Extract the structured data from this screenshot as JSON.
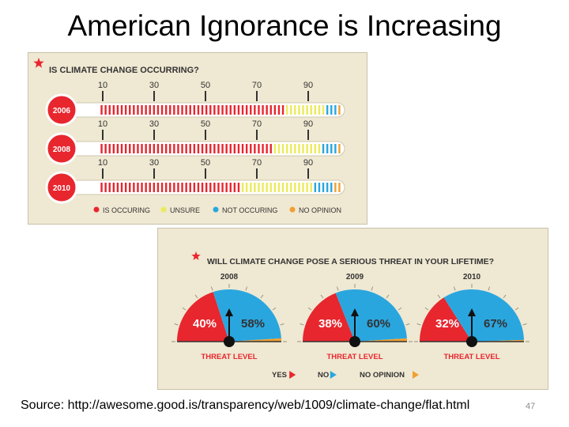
{
  "slide": {
    "title": "American Ignorance is Increasing",
    "source": "Source: http://awesome.good.is/transparency/web/1009/climate-change/flat.html",
    "page_number": "47"
  },
  "colors": {
    "red": "#e8262e",
    "yellow": "#ecea5c",
    "blue": "#2aa6df",
    "orange": "#f0a030",
    "gray": "#bdbdbd",
    "dark": "#333333",
    "panel_bg": "#efe8d2"
  },
  "chart_data": [
    {
      "type": "bar",
      "title": "IS CLIMATE CHANGE OCCURRING?",
      "scale_ticks": [
        "10",
        "30",
        "50",
        "70",
        "90"
      ],
      "categories": [
        "2006",
        "2008",
        "2010"
      ],
      "series": [
        {
          "name": "IS OCCURING",
          "values": [
            77,
            71,
            59
          ]
        },
        {
          "name": "UNSURE",
          "values": [
            16,
            21,
            30
          ]
        },
        {
          "name": "NOT OCCURING",
          "values": [
            6,
            6,
            8
          ]
        },
        {
          "name": "NO OPINION",
          "values": [
            1,
            2,
            3
          ]
        }
      ],
      "xlim": [
        0,
        100
      ],
      "legend": "bottom"
    },
    {
      "type": "pie",
      "title": "WILL CLIMATE CHANGE POSE A SERIOUS THREAT IN YOUR LIFETIME?",
      "categories": [
        "2008",
        "2009",
        "2010"
      ],
      "series": [
        {
          "name": "YES",
          "values": [
            40,
            38,
            32
          ],
          "labels": [
            "40%",
            "38%",
            "32%"
          ]
        },
        {
          "name": "NO",
          "values": [
            58,
            60,
            67
          ],
          "labels": [
            "58%",
            "60%",
            "67%"
          ]
        },
        {
          "name": "NO OPINION",
          "values": [
            2,
            2,
            1
          ]
        }
      ],
      "gauge_label": "THREAT LEVEL",
      "legend": "bottom"
    }
  ]
}
